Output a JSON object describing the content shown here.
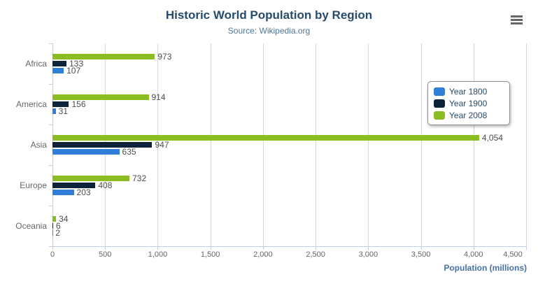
{
  "chart": {
    "export_menu_icon": "hamburger-icon"
  },
  "chart_data": {
    "type": "bar",
    "orientation": "horizontal",
    "title": "Historic World Population by Region",
    "subtitle": "Source: Wikipedia.org",
    "categories": [
      "Africa",
      "America",
      "Asia",
      "Europe",
      "Oceania"
    ],
    "series": [
      {
        "name": "Year 1800",
        "color": "#2f7ed8",
        "values": [
          107,
          31,
          635,
          203,
          2
        ]
      },
      {
        "name": "Year 1900",
        "color": "#0d233a",
        "values": [
          133,
          156,
          947,
          408,
          6
        ]
      },
      {
        "name": "Year 2008",
        "color": "#8bbc21",
        "values": [
          973,
          914,
          4054,
          732,
          34
        ]
      }
    ],
    "bar_order_top_to_bottom": [
      "Year 2008",
      "Year 1900",
      "Year 1800"
    ],
    "xlabel": "Population (millions)",
    "ylabel": "",
    "value_axis": {
      "min": 0,
      "max": 4500,
      "tick_interval": 500,
      "tick_labels": [
        "0",
        "500",
        "1,000",
        "1,500",
        "2,000",
        "2,500",
        "3,000",
        "3,500",
        "4,000",
        "4,500"
      ]
    },
    "legend": {
      "position": "right-floating",
      "entries": [
        "Year 1800",
        "Year 1900",
        "Year 2008"
      ]
    },
    "grid": true,
    "data_labels_visible": true,
    "colors": {
      "title": "#274b6d",
      "subtitle": "#4d759e",
      "axis_labels": "#666666",
      "data_labels": "#4d4d4d",
      "axis_title": "#4572a7",
      "axis_line": "#c0d0e0",
      "gridline": "#d8d8d8",
      "legend_text": "#274b6d",
      "menu_icon": "#666666"
    }
  }
}
